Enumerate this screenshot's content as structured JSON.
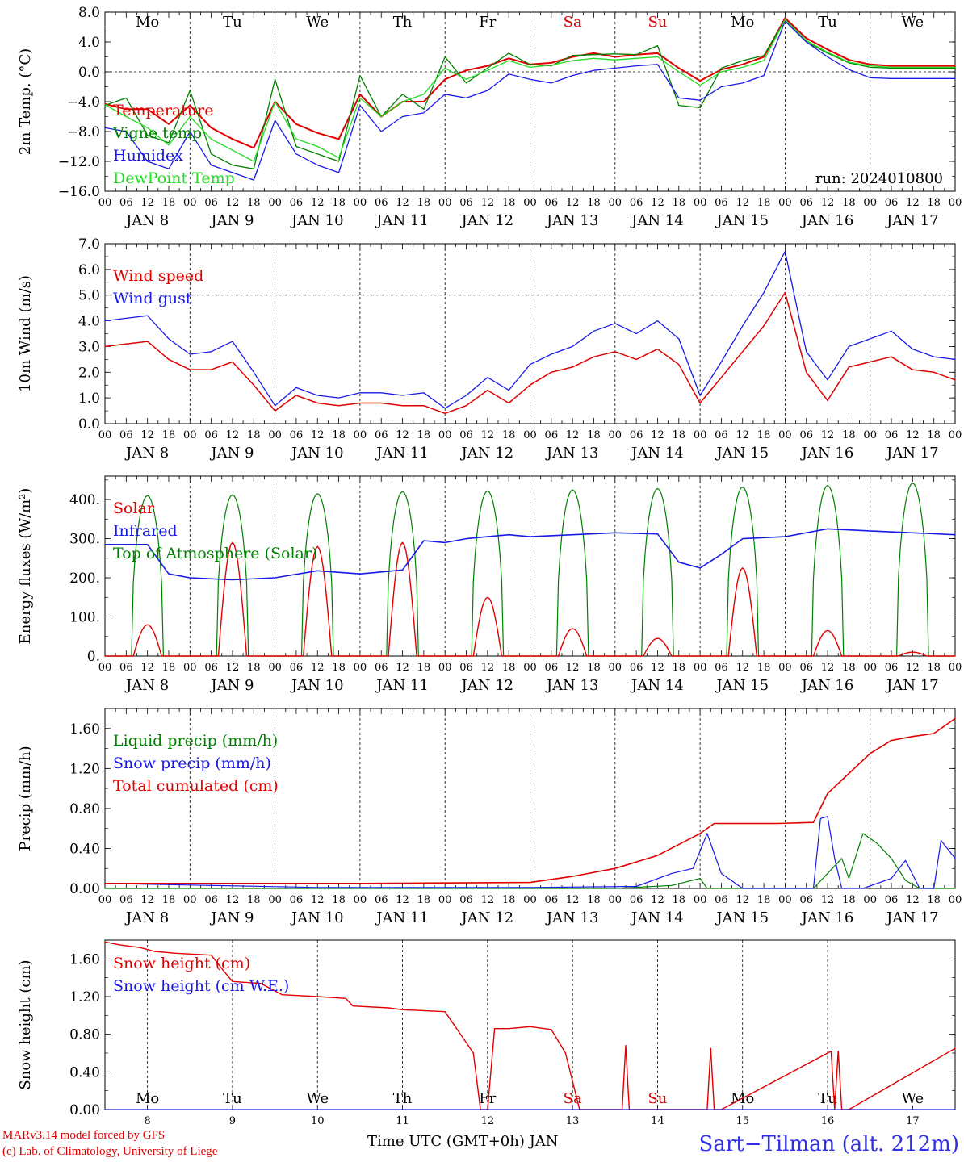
{
  "colors": {
    "red": "#e00000",
    "green": "#008000",
    "blue": "#1a1ae6",
    "lightgreen": "#22dd22",
    "footer_blue": "#2f2fe6"
  },
  "hour_ticks": [
    "00",
    "06",
    "12",
    "18"
  ],
  "day_labels": [
    "JAN  8",
    "JAN  9",
    "JAN 10",
    "JAN 11",
    "JAN 12",
    "JAN 13",
    "JAN 14",
    "JAN 15",
    "JAN 16",
    "JAN 17"
  ],
  "weekdays": [
    {
      "label": "Mo",
      "color": "#000000"
    },
    {
      "label": "Tu",
      "color": "#000000"
    },
    {
      "label": "We",
      "color": "#000000"
    },
    {
      "label": "Th",
      "color": "#000000"
    },
    {
      "label": "Fr",
      "color": "#000000"
    },
    {
      "label": "Sa",
      "color": "#e00000"
    },
    {
      "label": "Su",
      "color": "#e00000"
    },
    {
      "label": "Mo",
      "color": "#000000"
    },
    {
      "label": "Tu",
      "color": "#000000"
    },
    {
      "label": "We",
      "color": "#000000"
    }
  ],
  "day_numbers": [
    "8",
    "9",
    "10",
    "11",
    "12",
    "13",
    "14",
    "15",
    "16",
    "17"
  ],
  "footer": {
    "credit_line1": "MARv3.14 model forced by GFS",
    "credit_line2": "(c) Lab. of Climatology, University of Liege",
    "xlabel": "Time UTC (GMT+0h) JAN",
    "station": "Sart−Tilman (alt. 212m)"
  },
  "chart_data": [
    {
      "type": "line",
      "ylabel": "2m Temp. (°C)",
      "ylim": [
        -16,
        8
      ],
      "yticks": [
        "8.0",
        "4.0",
        "0.0",
        "−4.0",
        "−8.0",
        "−12.0",
        "−16.0"
      ],
      "ytick_values": [
        8,
        4,
        0,
        -4,
        -8,
        -12,
        -16
      ],
      "ref_line": 0,
      "annotation": "run: 2024010800",
      "x_hours": [
        0,
        6,
        12,
        18,
        24,
        30,
        36,
        42,
        48,
        54,
        60,
        66,
        72,
        78,
        84,
        90,
        96,
        102,
        108,
        114,
        120,
        126,
        132,
        138,
        144,
        150,
        156,
        162,
        168,
        174,
        180,
        186,
        192,
        198,
        204,
        210,
        216,
        222,
        228,
        234,
        240
      ],
      "series": [
        {
          "name": "Temperature",
          "color": "#e00000",
          "width": 2,
          "values": [
            -4.3,
            -5,
            -5,
            -7,
            -4.5,
            -7.5,
            -9,
            -10.2,
            -4,
            -7,
            -8.2,
            -9,
            -3,
            -6,
            -4,
            -4,
            -1,
            0.2,
            0.8,
            1.8,
            1,
            1.2,
            2,
            2.5,
            2,
            2.3,
            2.5,
            0.5,
            -1.2,
            0.3,
            1,
            2,
            7.2,
            4.5,
            3,
            1.6,
            1,
            0.8,
            0.8,
            0.8,
            0.8
          ]
        },
        {
          "name": "Vigne temp",
          "color": "#008000",
          "width": 1.3,
          "values": [
            -4.5,
            -3.5,
            -8.5,
            -9.5,
            -2.5,
            -11,
            -12.5,
            -13,
            -1,
            -10,
            -11,
            -12,
            -0.5,
            -6,
            -3,
            -5,
            2,
            -1.5,
            0.5,
            2.5,
            1,
            0.8,
            2.2,
            2.3,
            2.4,
            2.3,
            3.5,
            -4.5,
            -4.8,
            0.5,
            1.5,
            2.2,
            7,
            4,
            2.5,
            1.2,
            0.6,
            0.5,
            0.5,
            0.5,
            0.5
          ]
        },
        {
          "name": "Humidex",
          "color": "#1a1ae6",
          "width": 1.3,
          "values": [
            -7.5,
            -8,
            -12,
            -13,
            -8,
            -12.5,
            -13.5,
            -14.5,
            -6.5,
            -11,
            -12.5,
            -13.5,
            -4.5,
            -8,
            -6,
            -5.5,
            -3,
            -3.5,
            -2.5,
            -0.3,
            -1,
            -1.5,
            -0.5,
            0.2,
            0.5,
            0.8,
            1,
            -3.5,
            -3.8,
            -2,
            -1.5,
            -0.5,
            6.8,
            4,
            2,
            0.3,
            -0.8,
            -0.9,
            -0.9,
            -0.9,
            -0.9
          ]
        },
        {
          "name": "DewPoint Temp",
          "color": "#22dd22",
          "width": 1.3,
          "values": [
            -4.4,
            -6,
            -7.5,
            -9.8,
            -6,
            -9,
            -10.5,
            -12,
            -4,
            -9,
            -10,
            -11.5,
            -3.5,
            -6,
            -4,
            -3,
            0.5,
            -1,
            0.2,
            1.5,
            0.6,
            0.9,
            1.5,
            1.8,
            1.6,
            1.8,
            2,
            0,
            -1.8,
            0,
            0.6,
            1.5,
            7,
            4.2,
            2.6,
            1.3,
            0.8,
            0.6,
            0.6,
            0.6,
            0.6
          ]
        }
      ]
    },
    {
      "type": "line",
      "ylabel": "10m Wind (m/s)",
      "ylim": [
        0,
        7
      ],
      "yticks": [
        "7.0",
        "6.0",
        "5.0",
        "4.0",
        "3.0",
        "2.0",
        "1.0",
        "0.0"
      ],
      "ytick_values": [
        7,
        6,
        5,
        4,
        3,
        2,
        1,
        0
      ],
      "ref_line": 5,
      "x_hours": [
        0,
        6,
        12,
        18,
        24,
        30,
        36,
        42,
        48,
        54,
        60,
        66,
        72,
        78,
        84,
        90,
        96,
        102,
        108,
        114,
        120,
        126,
        132,
        138,
        144,
        150,
        156,
        162,
        168,
        174,
        180,
        186,
        192,
        198,
        204,
        210,
        216,
        222,
        228,
        234,
        240
      ],
      "series": [
        {
          "name": "Wind speed",
          "color": "#e00000",
          "width": 1.5,
          "values": [
            3,
            3.1,
            3.2,
            2.5,
            2.1,
            2.1,
            2.4,
            1.5,
            0.5,
            1.1,
            0.8,
            0.7,
            0.8,
            0.8,
            0.7,
            0.7,
            0.4,
            0.7,
            1.3,
            0.8,
            1.5,
            2,
            2.2,
            2.6,
            2.8,
            2.5,
            2.9,
            2.3,
            0.8,
            1.8,
            2.8,
            3.8,
            5.1,
            2,
            0.9,
            2.2,
            2.4,
            2.6,
            2.1,
            2.0,
            1.7
          ]
        },
        {
          "name": "Wind gust",
          "color": "#1a1ae6",
          "width": 1.3,
          "values": [
            4,
            4.1,
            4.2,
            3.3,
            2.7,
            2.8,
            3.2,
            2,
            0.7,
            1.4,
            1.1,
            1,
            1.2,
            1.2,
            1.1,
            1.2,
            0.6,
            1.1,
            1.8,
            1.3,
            2.3,
            2.7,
            3,
            3.6,
            3.9,
            3.5,
            4,
            3.3,
            1.1,
            2.4,
            3.8,
            5.1,
            6.7,
            2.8,
            1.7,
            3.0,
            3.3,
            3.6,
            2.9,
            2.6,
            2.5
          ]
        }
      ]
    },
    {
      "type": "line",
      "ylabel": "Energy fluxes (W/m²)",
      "ylim": [
        0,
        460
      ],
      "yticks": [
        "400.",
        "300.",
        "200.",
        "100.",
        "0."
      ],
      "ytick_values": [
        400,
        300,
        200,
        100,
        0
      ],
      "ref_line": null,
      "series": [
        {
          "name": "Solar",
          "color": "#e00000",
          "width": 1.4,
          "peaks": [
            80,
            290,
            280,
            290,
            150,
            70,
            45,
            225,
            65,
            10
          ]
        },
        {
          "name": "Infrared",
          "color": "#1a1ae6",
          "width": 1.6,
          "x_hours": [
            0,
            12,
            18,
            24,
            36,
            48,
            60,
            72,
            78,
            84,
            90,
            96,
            102,
            108,
            114,
            120,
            132,
            144,
            156,
            162,
            168,
            174,
            180,
            192,
            204,
            216,
            228,
            240
          ],
          "values": [
            285,
            285,
            210,
            200,
            195,
            200,
            218,
            210,
            215,
            220,
            295,
            290,
            300,
            305,
            310,
            305,
            310,
            315,
            312,
            240,
            225,
            260,
            300,
            305,
            325,
            320,
            315,
            310
          ]
        },
        {
          "name": "Top of Atmosphere (Solar)",
          "color": "#008000",
          "width": 1.2,
          "peaks": [
            410,
            412,
            415,
            420,
            422,
            425,
            428,
            432,
            436,
            442
          ]
        }
      ]
    },
    {
      "type": "line",
      "ylabel": "Precip (mm/h)",
      "ylim": [
        0,
        1.8
      ],
      "yticks": [
        "1.60",
        "1.20",
        "0.80",
        "0.40",
        "0.00"
      ],
      "ytick_values": [
        1.6,
        1.2,
        0.8,
        0.4,
        0
      ],
      "ref_line": null,
      "series": [
        {
          "name": "Liquid precip (mm/h)",
          "color": "#008000",
          "width": 1.2,
          "x_hours": [
            0,
            48,
            96,
            144,
            160,
            168,
            170,
            178,
            186,
            200,
            208,
            210,
            214,
            218,
            222,
            226,
            230,
            240
          ],
          "values": [
            0,
            0,
            0,
            0,
            0.03,
            0.1,
            0,
            0,
            0,
            0,
            0.3,
            0.1,
            0.55,
            0.45,
            0.3,
            0.08,
            0,
            0
          ]
        },
        {
          "name": "Snow precip (mm/h)",
          "color": "#1a1ae6",
          "width": 1.2,
          "x_hours": [
            0,
            60,
            120,
            150,
            160,
            166,
            170,
            174,
            180,
            190,
            200,
            202,
            204,
            206,
            208,
            214,
            222,
            226,
            230,
            234,
            236,
            240
          ],
          "values": [
            0.05,
            0.01,
            0.01,
            0.02,
            0.15,
            0.2,
            0.55,
            0.15,
            0,
            0,
            0,
            0.7,
            0.72,
            0.3,
            0,
            0,
            0.1,
            0.28,
            0,
            0,
            0.48,
            0.3
          ]
        },
        {
          "name": "Total cumulated (cm)",
          "color": "#e00000",
          "width": 1.6,
          "x_hours": [
            0,
            24,
            72,
            120,
            132,
            144,
            156,
            168,
            172,
            180,
            190,
            200,
            204,
            210,
            216,
            222,
            228,
            234,
            240
          ],
          "values": [
            0.05,
            0.05,
            0.05,
            0.06,
            0.12,
            0.2,
            0.33,
            0.55,
            0.65,
            0.65,
            0.65,
            0.66,
            0.95,
            1.15,
            1.35,
            1.48,
            1.52,
            1.55,
            1.7
          ]
        }
      ]
    },
    {
      "type": "line",
      "ylabel": "Snow height (cm)",
      "ylim": [
        0,
        1.8
      ],
      "yticks": [
        "1.60",
        "1.20",
        "0.80",
        "0.40",
        "0.00"
      ],
      "ytick_values": [
        1.6,
        1.2,
        0.8,
        0.4,
        0
      ],
      "ref_line": null,
      "series": [
        {
          "name": "Snow height (cm)",
          "color": "#e00000",
          "width": 1.4,
          "x_hours": [
            0,
            4,
            10,
            14,
            20,
            30,
            34,
            36,
            44,
            50,
            60,
            68,
            70,
            80,
            84,
            96,
            104,
            106,
            108,
            110,
            114,
            120,
            126,
            130,
            134,
            136,
            146,
            147,
            148,
            149,
            150,
            170,
            171,
            172,
            173,
            174,
            205,
            206,
            207,
            208,
            209,
            210,
            240
          ],
          "values": [
            1.78,
            1.75,
            1.72,
            1.68,
            1.66,
            1.64,
            1.45,
            1.36,
            1.34,
            1.22,
            1.2,
            1.18,
            1.1,
            1.08,
            1.06,
            1.04,
            0.6,
            0,
            0,
            0.86,
            0.86,
            0.88,
            0.85,
            0.6,
            0,
            0,
            0,
            0.68,
            0,
            0,
            0,
            0,
            0.65,
            0,
            0,
            0,
            0.62,
            0,
            0.62,
            0,
            0,
            0,
            0.65
          ]
        },
        {
          "name": "Snow height (cm W.E.)",
          "color": "#1a1ae6",
          "width": 1.2,
          "x_hours": [
            0,
            240
          ],
          "values": [
            0,
            0
          ]
        }
      ]
    }
  ]
}
